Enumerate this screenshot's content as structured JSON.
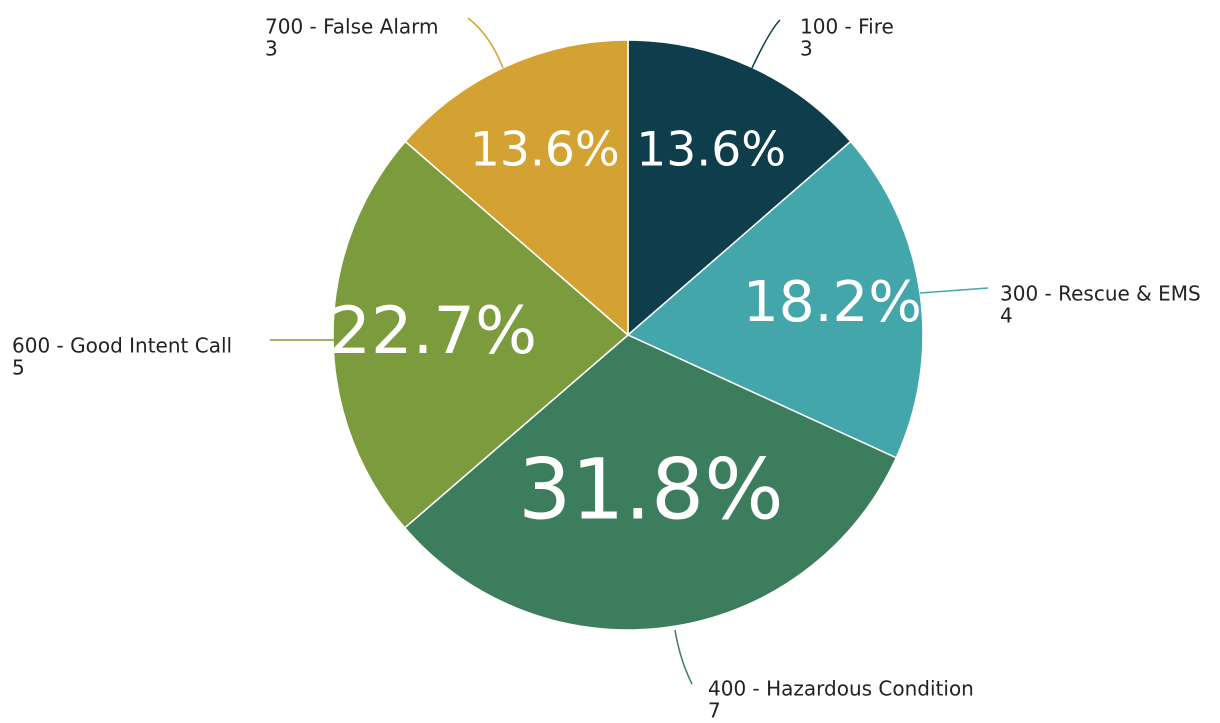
{
  "chart_data": {
    "type": "pie",
    "categories": [
      "100 - Fire",
      "300 - Rescue & EMS",
      "400 - Hazardous Condition",
      "600 - Good Intent Call",
      "700 - False Alarm"
    ],
    "values": [
      13.6,
      18.2,
      31.8,
      22.7,
      13.6
    ],
    "value_labels": [
      "13.6%",
      "18.2%",
      "31.8%",
      "22.7%",
      "13.6%"
    ],
    "counts": [
      3,
      4,
      7,
      5,
      3
    ],
    "colors": [
      "#0e3d4c",
      "#43a6aa",
      "#3b7d5c",
      "#7b9b3c",
      "#d3a233"
    ]
  }
}
